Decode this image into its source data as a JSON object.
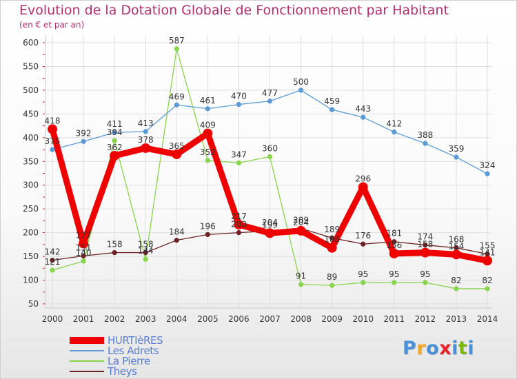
{
  "header": {
    "title": "Evolution de la Dotation Globale de Fonctionnement par Habitant",
    "subtitle": "(en € et par an)"
  },
  "logo": {
    "text": "Proxiti",
    "colors": [
      "#4a90d9",
      "#f5a623",
      "#4a90d9",
      "#e8222a",
      "#4a90d9",
      "#7ab800",
      "#4a90d9"
    ]
  },
  "chart_data": {
    "type": "line",
    "x": [
      2000,
      2001,
      2002,
      2003,
      2004,
      2005,
      2006,
      2007,
      2008,
      2009,
      2010,
      2011,
      2012,
      2013,
      2014
    ],
    "ylim": [
      50,
      600
    ],
    "yticks": [
      50,
      100,
      150,
      200,
      250,
      300,
      350,
      400,
      450,
      500,
      550,
      600
    ],
    "grid": true,
    "legend_position": "bottom-left",
    "series": [
      {
        "name": "HURTIèRES",
        "color": "#ee0000",
        "values": [
          418,
          177,
          362,
          378,
          365,
          409,
          217,
          199,
          204,
          168,
          296,
          156,
          158,
          154,
          141
        ],
        "labels": [
          "418",
          "177",
          "362",
          "378",
          "365",
          "409",
          "217",
          "199",
          "204",
          "168",
          "296",
          "156",
          "158",
          "154",
          "141"
        ]
      },
      {
        "name": "Les Adrets",
        "color": "#5b9bd5",
        "values": [
          375,
          392,
          411,
          413,
          469,
          461,
          470,
          477,
          500,
          459,
          443,
          412,
          388,
          359,
          324
        ],
        "labels": [
          "375",
          "392",
          "411",
          "413",
          "469",
          "461",
          "470",
          "477",
          "500",
          "459",
          "443",
          "412",
          "388",
          "359",
          "324"
        ]
      },
      {
        "name": "La Pierre",
        "color": "#88d44a",
        "values": [
          121,
          140,
          394,
          144,
          587,
          352,
          347,
          360,
          91,
          89,
          95,
          95,
          95,
          82,
          82
        ],
        "labels": [
          "121",
          "140",
          "394",
          "144",
          "587",
          "352",
          "347",
          "360",
          "91",
          "89",
          "95",
          "95",
          "95",
          "82",
          "82"
        ]
      },
      {
        "name": "Theys",
        "color": "#6b2222",
        "values": [
          142,
          151,
          158,
          158,
          184,
          196,
          200,
          204,
          209,
          189,
          176,
          181,
          174,
          168,
          155
        ],
        "labels": [
          "142",
          "151",
          "158",
          "158",
          "184",
          "196",
          "200",
          "204",
          "209",
          "189",
          "176",
          "181",
          "174",
          "168",
          "155"
        ]
      }
    ]
  }
}
